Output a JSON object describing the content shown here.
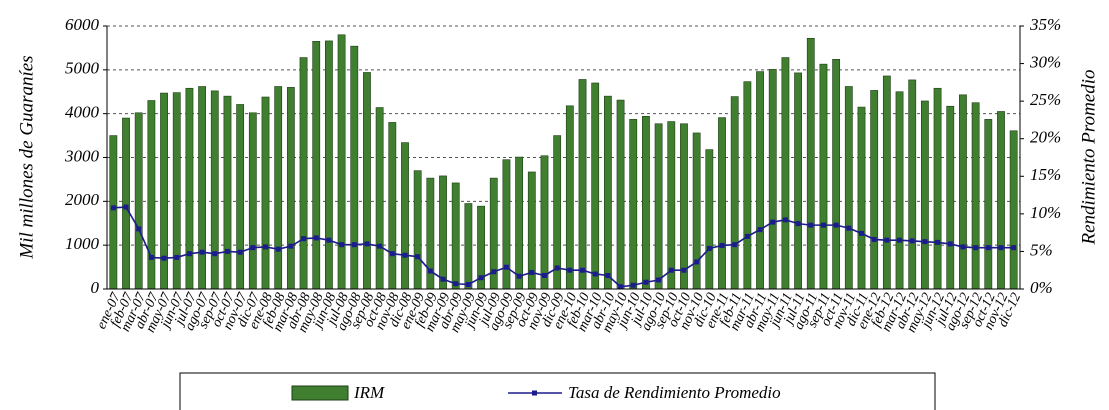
{
  "chart_data": {
    "type": "bar",
    "y_label": "Mil millones de Guaraníes",
    "y2_label": "Rendimiento Promedio",
    "categories": [
      "ene-07",
      "feb-07",
      "mar-07",
      "abr-07",
      "may-07",
      "jun-07",
      "jul-07",
      "ago-07",
      "sep-07",
      "oct-07",
      "nov-07",
      "dic-07",
      "ene-08",
      "feb-08",
      "mar-08",
      "abr-08",
      "may-08",
      "jun-08",
      "jul-08",
      "ago-08",
      "sep-08",
      "oct-08",
      "nov-08",
      "dic-08",
      "ene-09",
      "feb-09",
      "mar-09",
      "abr-09",
      "may-09",
      "jun-09",
      "jul-09",
      "ago-09",
      "sep-09",
      "oct-09",
      "nov-09",
      "dic-09",
      "ene-10",
      "feb-10",
      "mar-10",
      "abr-10",
      "may-10",
      "jun-10",
      "jul-10",
      "ago-10",
      "sep-10",
      "oct-10",
      "nov-10",
      "dic-10",
      "ene-11",
      "feb-11",
      "mar-11",
      "abr-11",
      "may-11",
      "jun-11",
      "jul-11",
      "ago-11",
      "sep-11",
      "oct-11",
      "nov-11",
      "dic-11",
      "ene-12",
      "feb-12",
      "mar-12",
      "abr-12",
      "may-12",
      "jun-12",
      "jul-12",
      "ago-12",
      "sep-12",
      "oct-12",
      "nov-12",
      "dic-12"
    ],
    "series": [
      {
        "name": "IRM",
        "color": "#3f7f2f",
        "values": [
          3500,
          3900,
          4020,
          4300,
          4470,
          4480,
          4580,
          4620,
          4520,
          4400,
          4210,
          4020,
          4380,
          4620,
          4600,
          5280,
          5650,
          5660,
          5800,
          5540,
          4940,
          4140,
          3800,
          3340,
          2700,
          2530,
          2580,
          2420,
          1950,
          1890,
          2530,
          2950,
          3010,
          2670,
          3040,
          3500,
          4180,
          4780,
          4700,
          4400,
          4310,
          3870,
          3940,
          3770,
          3820,
          3770,
          3560,
          3180,
          3910,
          4390,
          4730,
          4960,
          5010,
          5280,
          4930,
          5720,
          5130,
          5240,
          4620,
          4150,
          4530,
          4860,
          4500,
          4770,
          4290,
          4580,
          4170,
          4430,
          4250,
          3870,
          4050,
          3610
        ]
      },
      {
        "name": "Tasa de Rendimiento Promedio",
        "color": "#1c1c8c",
        "axis": "y2",
        "values": [
          10.8,
          10.9,
          8.0,
          4.2,
          4.1,
          4.2,
          4.7,
          4.9,
          4.7,
          5.0,
          4.9,
          5.5,
          5.6,
          5.3,
          5.7,
          6.7,
          6.8,
          6.5,
          5.9,
          5.9,
          6.0,
          5.7,
          4.7,
          4.5,
          4.3,
          2.4,
          1.3,
          0.7,
          0.6,
          1.5,
          2.3,
          2.9,
          1.7,
          2.2,
          1.8,
          2.8,
          2.5,
          2.5,
          2.0,
          1.8,
          0.3,
          0.5,
          0.9,
          1.2,
          2.5,
          2.5,
          3.6,
          5.4,
          5.8,
          5.9,
          7.0,
          7.9,
          8.9,
          9.2,
          8.7,
          8.5,
          8.5,
          8.5,
          8.1,
          7.4,
          6.6,
          6.5,
          6.5,
          6.4,
          6.3,
          6.2,
          6.0,
          5.6,
          5.5,
          5.5,
          5.5,
          5.5
        ]
      }
    ],
    "ylim": [
      0,
      6000
    ],
    "yticks": [
      0,
      1000,
      2000,
      3000,
      4000,
      5000,
      6000
    ],
    "y2lim": [
      0,
      35
    ],
    "y2ticks": [
      {
        "value": 0,
        "label": "0%"
      },
      {
        "value": 5,
        "label": "5%"
      },
      {
        "value": 10,
        "label": "10%"
      },
      {
        "value": 15,
        "label": "15%"
      },
      {
        "value": 20,
        "label": "20%"
      },
      {
        "value": 25,
        "label": "25%"
      },
      {
        "value": 30,
        "label": "30%"
      },
      {
        "value": 35,
        "label": "35%"
      }
    ],
    "grid": true
  }
}
